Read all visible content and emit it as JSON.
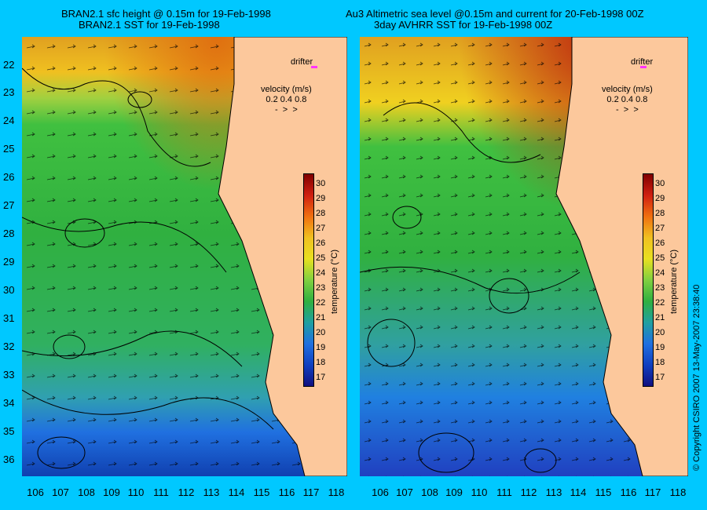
{
  "left_panel": {
    "title_line1": "BRAN2.1 sfc height @ 0.15m for 19-Feb-1998",
    "title_line2": "BRAN2.1 SST for 19-Feb-1998",
    "drifter_label": "drifter",
    "velocity_title": "velocity (m/s)",
    "velocity_values": "0.2 0.4 0.8"
  },
  "right_panel": {
    "title_line1": "Au3 Altimetric sea level  @0.15m and current for 20-Feb-1998 00Z",
    "title_line2": "3day AVHRR SST for 19-Feb-1998 00Z",
    "drifter_label": "drifter",
    "velocity_title": "velocity (m/s)",
    "velocity_values": "0.2 0.4 0.8"
  },
  "latitude_labels": [
    "22",
    "23",
    "24",
    "25",
    "26",
    "27",
    "28",
    "29",
    "30",
    "31",
    "32",
    "33",
    "34",
    "35",
    "36"
  ],
  "longitude_labels": [
    "106",
    "107",
    "108",
    "109",
    "110",
    "111",
    "112",
    "113",
    "114",
    "115",
    "116",
    "117",
    "118"
  ],
  "colorbar": {
    "title": "temperature (°C)",
    "ticks": [
      "30",
      "29",
      "28",
      "27",
      "26",
      "25",
      "24",
      "23",
      "22",
      "21",
      "20",
      "19",
      "18",
      "17"
    ],
    "range": [
      16.5,
      30.5
    ]
  },
  "copyright": "© Copyright CSIRO 2007  13-May-2007 23:38:40",
  "colors": {
    "background": "#00c8ff",
    "land": "#fcc89c",
    "land_dark": "#b8a090",
    "drifter": "#ff33ff"
  }
}
